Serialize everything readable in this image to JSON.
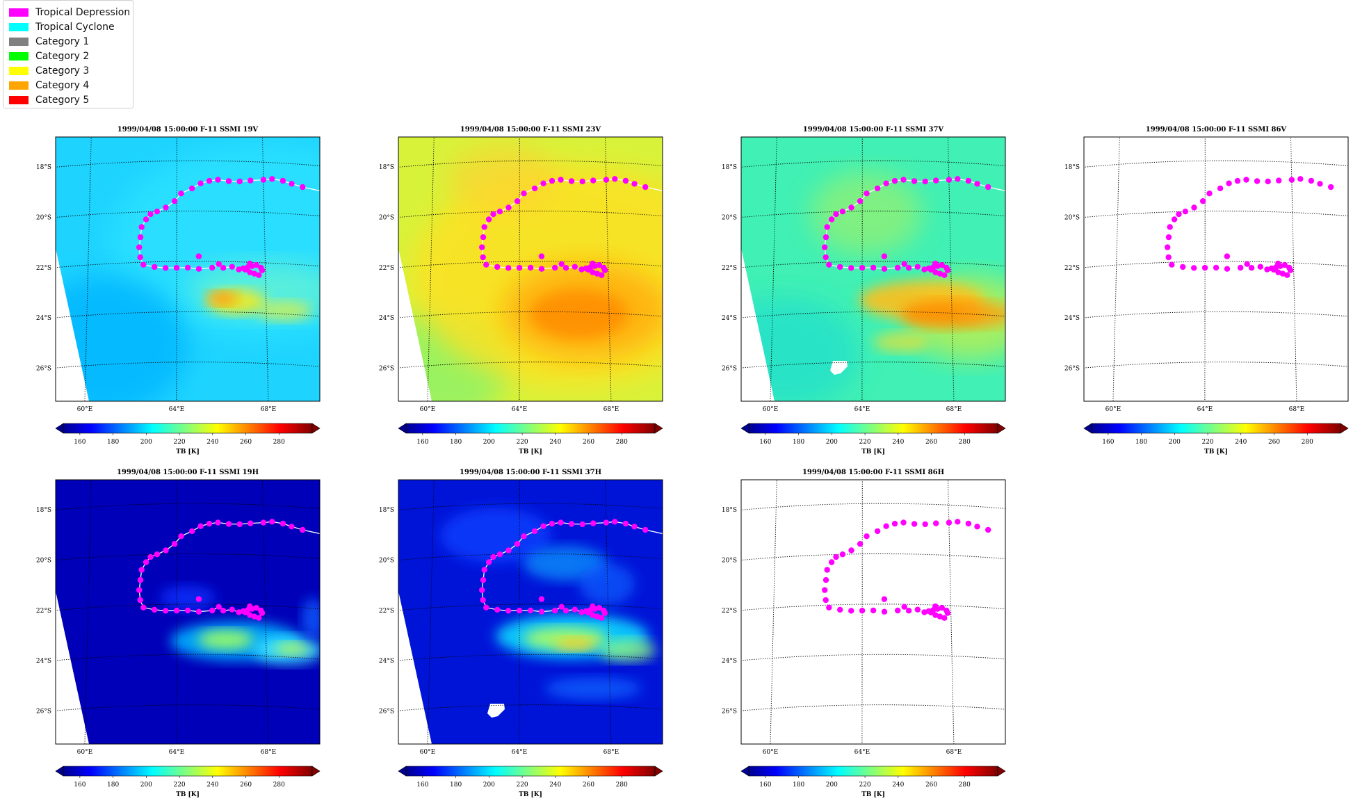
{
  "legend": {
    "items": [
      {
        "label": "Tropical Depression",
        "color": "#ff00ff"
      },
      {
        "label": "Tropical Cyclone",
        "color": "#00ffff"
      },
      {
        "label": "Category 1",
        "color": "#808080"
      },
      {
        "label": "Category 2",
        "color": "#00ff00"
      },
      {
        "label": "Category 3",
        "color": "#ffff00"
      },
      {
        "label": "Category 4",
        "color": "#ffa500"
      },
      {
        "label": "Category 5",
        "color": "#ff0000"
      }
    ]
  },
  "chart_data": [
    {
      "type": "heatmap",
      "title": "1999/04/08 15:00:00  F-11 SSMI 19V",
      "background": "cyan",
      "colorbar_label": "TB [K]"
    },
    {
      "type": "heatmap",
      "title": "1999/04/08 15:00:00  F-11 SSMI 23V",
      "background": "yellow",
      "colorbar_label": "TB [K]"
    },
    {
      "type": "heatmap",
      "title": "1999/04/08 15:00:00  F-11 SSMI 37V",
      "background": "green",
      "colorbar_label": "TB [K]"
    },
    {
      "type": "heatmap",
      "title": "1999/04/08 15:00:00  F-11 SSMI 86V",
      "background": "none",
      "colorbar_label": "TB [K]"
    },
    {
      "type": "heatmap",
      "title": "1999/04/08 15:00:00  F-11 SSMI 19H",
      "background": "blue",
      "colorbar_label": "TB [K]"
    },
    {
      "type": "heatmap",
      "title": "1999/04/08 15:00:00  F-11 SSMI 37H",
      "background": "blue37",
      "colorbar_label": "TB [K]"
    },
    {
      "type": "heatmap",
      "title": "1999/04/08 15:00:00  F-11 SSMI 86H",
      "background": "none",
      "colorbar_label": "TB [K]"
    }
  ],
  "map_axes": {
    "lat_ticks": [
      "18°S",
      "20°S",
      "22°S",
      "24°S",
      "26°S"
    ],
    "lon_ticks": [
      "60°E",
      "64°E",
      "68°E"
    ],
    "lat_range": [
      -27.5,
      -17
    ],
    "lon_range": [
      58.5,
      70.5
    ]
  },
  "colorbar": {
    "ticks": [
      "160",
      "180",
      "200",
      "220",
      "240",
      "260",
      "280"
    ],
    "range": [
      150,
      300
    ],
    "tick_values": [
      160,
      180,
      200,
      220,
      240,
      260,
      280
    ]
  },
  "track": {
    "color": "#ff00ff",
    "category": "Tropical Depression",
    "points": [
      [
        69.8,
        -18.9
      ],
      [
        69.3,
        -18.8
      ],
      [
        68.9,
        -18.7
      ],
      [
        68.4,
        -18.65
      ],
      [
        68.0,
        -18.7
      ],
      [
        67.4,
        -18.75
      ],
      [
        66.9,
        -18.8
      ],
      [
        66.4,
        -18.8
      ],
      [
        65.9,
        -18.75
      ],
      [
        65.5,
        -18.8
      ],
      [
        65.1,
        -18.9
      ],
      [
        64.7,
        -19.1
      ],
      [
        64.2,
        -19.3
      ],
      [
        63.9,
        -19.6
      ],
      [
        63.5,
        -19.85
      ],
      [
        63.1,
        -20.0
      ],
      [
        62.8,
        -20.1
      ],
      [
        62.6,
        -20.3
      ],
      [
        62.4,
        -20.6
      ],
      [
        62.35,
        -21.0
      ],
      [
        62.3,
        -21.4
      ],
      [
        62.35,
        -21.8
      ],
      [
        62.5,
        -22.1
      ],
      [
        63.0,
        -22.2
      ],
      [
        63.5,
        -22.25
      ],
      [
        64.0,
        -22.25
      ],
      [
        64.5,
        -22.25
      ],
      [
        65.0,
        -22.3
      ],
      [
        65.6,
        -22.25
      ],
      [
        65.9,
        -22.1
      ],
      [
        66.1,
        -22.25
      ],
      [
        66.5,
        -22.2
      ],
      [
        66.8,
        -22.3
      ],
      [
        67.0,
        -22.25
      ],
      [
        67.2,
        -22.2
      ],
      [
        67.4,
        -22.15
      ],
      [
        67.6,
        -22.1
      ],
      [
        67.8,
        -22.2
      ],
      [
        67.85,
        -22.3
      ],
      [
        67.7,
        -22.5
      ],
      [
        67.5,
        -22.45
      ],
      [
        67.3,
        -22.4
      ],
      [
        67.1,
        -22.3
      ],
      [
        67.3,
        -22.05
      ],
      [
        65.0,
        -21.8
      ]
    ]
  }
}
